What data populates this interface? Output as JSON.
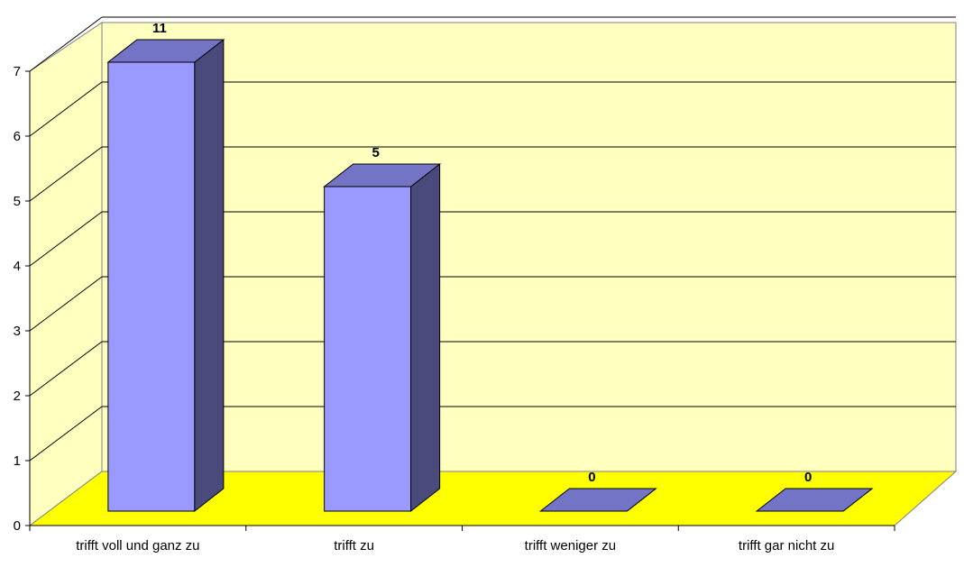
{
  "chart_data": {
    "type": "bar",
    "title": "",
    "xlabel": "",
    "ylabel": "",
    "categories": [
      "trifft voll und ganz zu",
      "trifft zu",
      "trifft weniger zu",
      "trifft gar nicht zu"
    ],
    "values": [
      11,
      5,
      0,
      0
    ],
    "data_labels": [
      "11",
      "5",
      "0",
      "0"
    ],
    "ylim": [
      0,
      7
    ],
    "yticks": [
      "0",
      "1",
      "2",
      "3",
      "4",
      "5",
      "6",
      "7"
    ],
    "grid": true,
    "bar_style": "3d-box",
    "colors": {
      "bar_front": "#9999ff",
      "bar_side": "#4b4a7c",
      "bar_top": "#7474c6",
      "back_wall": "#ffffc0",
      "floor": "#ffff00",
      "side_wall": "#ffffc0",
      "gridline": "#000000"
    }
  }
}
